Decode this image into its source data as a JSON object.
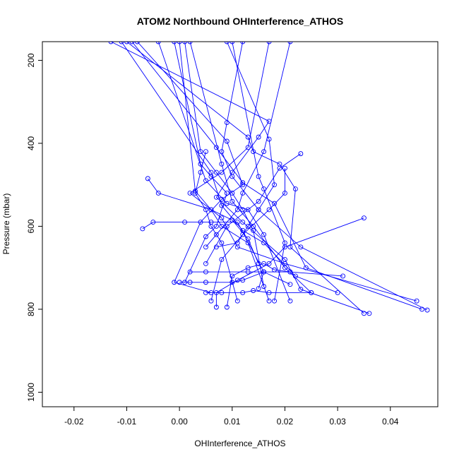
{
  "chart_data": {
    "type": "line",
    "title": "ATOM2 Northbound OHInterference_ATHOS",
    "xlabel": "OHInterference_ATHOS",
    "ylabel": "Pressure (mbar)",
    "xlim": [
      -0.026,
      0.049
    ],
    "ylim": [
      1035,
      155
    ],
    "y_reversed": true,
    "grid": false,
    "legend": "none",
    "series_color": "#0000ff",
    "marker": "open-circle",
    "x_ticks": [
      -0.02,
      -0.01,
      0.0,
      0.01,
      0.02,
      0.03,
      0.04
    ],
    "x_tick_labels": [
      "-0.02",
      "-0.01",
      "0.00",
      "0.01",
      "0.02",
      "0.03",
      "0.04"
    ],
    "y_ticks": [
      200,
      400,
      600,
      800,
      1000
    ],
    "y_tick_labels": [
      "200",
      "400",
      "600",
      "800",
      "1000"
    ],
    "series": [
      {
        "x": [
          -0.013,
          0.017,
          0.015,
          0.01,
          0.007,
          0.012,
          0.02,
          0.023,
          0.036
        ],
        "y": [
          155,
          347,
          385,
          470,
          530,
          590,
          680,
          752,
          810
        ]
      },
      {
        "x": [
          -0.01,
          0.013,
          0.014,
          0.019,
          0.022,
          0.021,
          0.035
        ],
        "y": [
          155,
          385,
          420,
          450,
          510,
          650,
          810
        ]
      },
      {
        "x": [
          -0.008,
          0.009,
          0.012,
          0.008,
          0.004,
          -0.001,
          0.006
        ],
        "y": [
          155,
          395,
          500,
          535,
          590,
          735,
          760
        ]
      },
      {
        "x": [
          -0.011,
          0.006,
          0.008,
          0.012,
          0.016,
          0.022,
          0.03
        ],
        "y": [
          155,
          470,
          550,
          610,
          640,
          720,
          760
        ]
      },
      {
        "x": [
          -0.001,
          0.004,
          0.006,
          0.009,
          0.007,
          0.005,
          0.001
        ],
        "y": [
          155,
          450,
          480,
          520,
          600,
          625,
          735
        ]
      },
      {
        "x": [
          0.0,
          0.003,
          0.006,
          0.01,
          0.013,
          0.015
        ],
        "y": [
          155,
          515,
          560,
          585,
          630,
          690
        ]
      },
      {
        "x": [
          0.001,
          0.004,
          0.007,
          0.01,
          0.012,
          0.014,
          0.016
        ],
        "y": [
          155,
          420,
          470,
          520,
          560,
          610,
          745
        ]
      },
      {
        "x": [
          -0.009,
          0.007,
          0.012,
          0.018,
          0.024,
          0.046
        ],
        "y": [
          155,
          410,
          495,
          545,
          700,
          800
        ]
      },
      {
        "x": [
          0.002,
          0.008,
          0.01,
          0.014,
          0.02,
          0.025
        ],
        "y": [
          155,
          450,
          540,
          600,
          700,
          760
        ]
      },
      {
        "x": [
          -0.004,
          0.005,
          0.009,
          0.013,
          0.016,
          0.021
        ],
        "y": [
          155,
          490,
          545,
          560,
          620,
          780
        ]
      },
      {
        "x": [
          0.017,
          0.013,
          0.008,
          0.002,
          0.008,
          0.011,
          0.02,
          0.045
        ],
        "y": [
          155,
          410,
          470,
          520,
          580,
          650,
          690,
          780
        ]
      },
      {
        "x": [
          0.009,
          0.017,
          0.018,
          0.015,
          0.013,
          0.011,
          0.007
        ],
        "y": [
          155,
          390,
          500,
          560,
          600,
          640,
          650
        ]
      },
      {
        "x": [
          0.01,
          0.015,
          0.016,
          0.02,
          0.018
        ],
        "y": [
          155,
          480,
          510,
          640,
          780
        ]
      },
      {
        "x": [
          -0.006,
          -0.004,
          0.006,
          0.008,
          0.013,
          0.017
        ],
        "y": [
          485,
          520,
          560,
          600,
          640,
          780
        ]
      },
      {
        "x": [
          -0.007,
          -0.005,
          0.001,
          0.006,
          0.011,
          0.016,
          0.015
        ],
        "y": [
          606,
          590,
          590,
          590,
          590,
          710,
          750
        ]
      },
      {
        "x": [
          0.035,
          0.02,
          0.017,
          0.011,
          0.007,
          0.007
        ],
        "y": [
          580,
          650,
          690,
          730,
          760,
          795
        ]
      },
      {
        "x": [
          0.031,
          0.021,
          0.018,
          0.016,
          0.013,
          0.01,
          0.009
        ],
        "y": [
          720,
          710,
          705,
          690,
          700,
          720,
          795
        ]
      },
      {
        "x": [
          0.002,
          0.005,
          0.013,
          0.016,
          0.021
        ],
        "y": [
          710,
          710,
          710,
          710,
          710
        ]
      },
      {
        "x": [
          0.0,
          0.002,
          0.005,
          0.01,
          0.012,
          0.016,
          0.021
        ],
        "y": [
          735,
          735,
          735,
          735,
          730,
          710,
          740
        ]
      },
      {
        "x": [
          0.005,
          0.008,
          0.012,
          0.014,
          0.017,
          0.025
        ],
        "y": [
          760,
          760,
          760,
          755,
          760,
          760
        ]
      },
      {
        "x": [
          0.005,
          0.004,
          0.003,
          0.005,
          0.006,
          0.008,
          0.011
        ],
        "y": [
          420,
          470,
          520,
          560,
          600,
          640,
          780
        ]
      },
      {
        "x": [
          0.021,
          0.016,
          0.012,
          0.011,
          0.007,
          0.005
        ],
        "y": [
          155,
          420,
          520,
          560,
          620,
          650
        ]
      },
      {
        "x": [
          0.023,
          0.019,
          0.015,
          0.009,
          0.005
        ],
        "y": [
          425,
          460,
          540,
          600,
          690
        ]
      },
      {
        "x": [
          0.02,
          0.02,
          0.017,
          0.012,
          0.008,
          0.006
        ],
        "y": [
          460,
          520,
          560,
          620,
          680,
          780
        ]
      },
      {
        "x": [
          0.012,
          0.009,
          0.008,
          0.01,
          0.015,
          0.023,
          0.047
        ],
        "y": [
          155,
          350,
          420,
          480,
          560,
          650,
          802
        ]
      }
    ]
  }
}
